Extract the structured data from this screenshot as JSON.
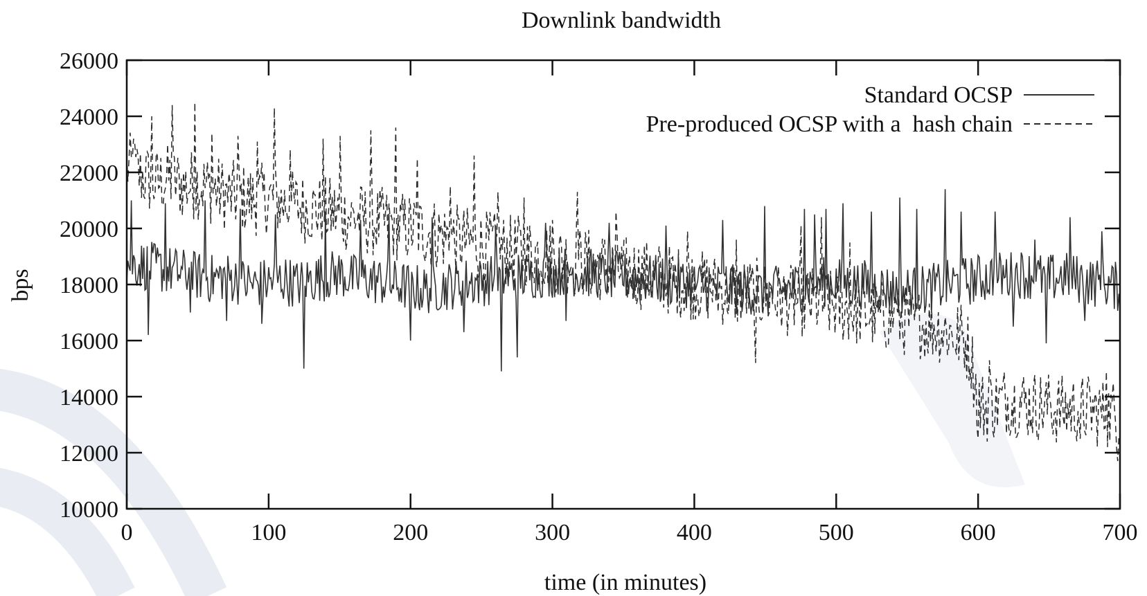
{
  "chart_data": {
    "type": "line",
    "title": "Downlink bandwidth",
    "xlabel": "time (in minutes)",
    "ylabel": "bps",
    "xlim": [
      0,
      700
    ],
    "ylim": [
      10000,
      26000
    ],
    "xticks": [
      0,
      100,
      200,
      300,
      400,
      500,
      600,
      700
    ],
    "yticks": [
      10000,
      12000,
      14000,
      16000,
      18000,
      20000,
      22000,
      24000,
      26000
    ],
    "grid": false,
    "legend_position": "top-right",
    "series": [
      {
        "name": "Standard OCSP",
        "style": "solid",
        "color": "#333333",
        "x": [
          0,
          10,
          20,
          30,
          40,
          50,
          60,
          70,
          80,
          90,
          100,
          110,
          120,
          130,
          140,
          150,
          160,
          170,
          180,
          190,
          200,
          210,
          220,
          230,
          240,
          250,
          260,
          270,
          280,
          290,
          300,
          310,
          320,
          330,
          340,
          350,
          360,
          370,
          380,
          390,
          400,
          410,
          420,
          430,
          440,
          450,
          460,
          470,
          480,
          490,
          500,
          510,
          520,
          530,
          540,
          550,
          560,
          570,
          580,
          590,
          600,
          610,
          620,
          630,
          640,
          650,
          660,
          670,
          680,
          690,
          700
        ],
        "values": [
          18800,
          18700,
          18600,
          18500,
          18400,
          18300,
          18200,
          18300,
          18100,
          18000,
          18100,
          18200,
          18000,
          18200,
          18300,
          18400,
          18200,
          18200,
          18100,
          18000,
          17900,
          17800,
          17900,
          18000,
          18100,
          18100,
          18200,
          18300,
          18300,
          18400,
          18400,
          18500,
          18400,
          18400,
          18300,
          18300,
          18200,
          18200,
          18100,
          18100,
          18000,
          17900,
          17900,
          17800,
          17800,
          17700,
          17800,
          17900,
          18000,
          18100,
          18100,
          18000,
          18000,
          17900,
          17800,
          17800,
          17800,
          17900,
          18000,
          18100,
          18200,
          18300,
          18300,
          18400,
          18300,
          18200,
          18300,
          18200,
          18100,
          18000,
          17900
        ],
        "spikes": {
          "x": [
            3,
            15,
            27,
            45,
            55,
            70,
            80,
            95,
            105,
            125,
            140,
            165,
            185,
            200,
            215,
            238,
            260,
            264,
            275,
            295,
            310,
            340,
            380,
            420,
            450,
            478,
            485,
            493,
            505,
            525,
            545,
            557,
            577,
            588,
            612,
            625,
            640,
            648,
            665,
            675,
            687
          ],
          "values": [
            21000,
            16200,
            20900,
            17000,
            21000,
            16700,
            20700,
            16600,
            20500,
            15000,
            20600,
            20300,
            20500,
            16000,
            20400,
            16300,
            20100,
            14900,
            15400,
            20200,
            16700,
            20200,
            20100,
            20300,
            20800,
            20700,
            20500,
            20700,
            20900,
            20600,
            21100,
            20700,
            21400,
            20600,
            20600,
            16500,
            19600,
            15900,
            20400,
            16700,
            19900
          ]
        }
      },
      {
        "name": "Pre-produced OCSP with a  hash chain",
        "style": "dashed",
        "color": "#2a2a2a",
        "x": [
          0,
          10,
          20,
          30,
          40,
          50,
          60,
          70,
          80,
          90,
          100,
          110,
          120,
          130,
          140,
          150,
          160,
          170,
          180,
          190,
          200,
          210,
          220,
          230,
          240,
          250,
          260,
          270,
          280,
          290,
          300,
          310,
          320,
          330,
          340,
          350,
          360,
          370,
          380,
          390,
          400,
          410,
          420,
          430,
          440,
          450,
          460,
          470,
          480,
          490,
          500,
          510,
          520,
          530,
          540,
          550,
          560,
          570,
          580,
          590,
          595,
          600,
          605,
          610,
          620,
          630,
          640,
          650,
          660,
          670,
          680,
          690,
          700
        ],
        "values": [
          22200,
          21900,
          21600,
          21800,
          21500,
          21600,
          21400,
          21200,
          21100,
          21000,
          21100,
          20900,
          20800,
          20700,
          20600,
          20500,
          20400,
          20300,
          20200,
          20100,
          20000,
          19900,
          19800,
          19600,
          19500,
          19400,
          19300,
          19200,
          19200,
          19100,
          19000,
          18900,
          18800,
          18700,
          18600,
          18500,
          18400,
          18300,
          18200,
          18100,
          18000,
          17900,
          17800,
          17700,
          17700,
          17600,
          17500,
          17400,
          17400,
          17300,
          17200,
          17100,
          17000,
          16900,
          16800,
          16700,
          16600,
          16500,
          16300,
          16100,
          15500,
          13800,
          13600,
          13700,
          13900,
          13800,
          13700,
          13600,
          13500,
          13600,
          13500,
          13400,
          13400
        ],
        "spikes": {
          "x": [
            5,
            18,
            32,
            48,
            60,
            78,
            92,
            104,
            115,
            138,
            150,
            172,
            190,
            205,
            228,
            245,
            262,
            280,
            300,
            318,
            345,
            395,
            430,
            443,
            475,
            490,
            510,
            542,
            560,
            585,
            600,
            608,
            625,
            650,
            672,
            690,
            698
          ],
          "values": [
            23200,
            24000,
            24400,
            24500,
            23400,
            23300,
            23100,
            24300,
            22800,
            23200,
            23300,
            23500,
            23600,
            22500,
            21500,
            22600,
            21300,
            21100,
            20300,
            21300,
            20600,
            19900,
            19600,
            15200,
            20100,
            20400,
            19500,
            17600,
            15700,
            15500,
            12500,
            15300,
            12900,
            14000,
            12500,
            14900,
            11700
          ]
        }
      }
    ]
  }
}
